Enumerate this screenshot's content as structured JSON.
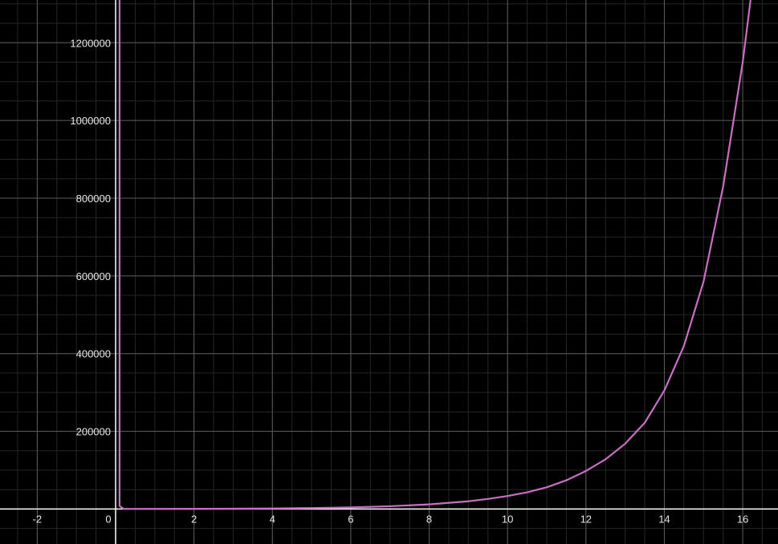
{
  "chart_data": {
    "type": "line",
    "title": "",
    "xlabel": "",
    "ylabel": "",
    "xlim": [
      -2.95,
      16.9
    ],
    "ylim": [
      -90000,
      1310000
    ],
    "grid": true,
    "x_ticks": [
      -2,
      0,
      2,
      4,
      6,
      8,
      10,
      12,
      14,
      16
    ],
    "x_tick_labels": [
      "-2",
      "0",
      "2",
      "4",
      "6",
      "8",
      "10",
      "12",
      "14",
      "16"
    ],
    "y_ticks": [
      200000,
      400000,
      600000,
      800000,
      1000000,
      1200000
    ],
    "y_tick_labels": [
      "200000",
      "400000",
      "600000",
      "800000",
      "1000000",
      "1200000"
    ],
    "line_color": "#c86fc3",
    "background_color": "#000000",
    "series": [
      {
        "points": [
          {
            "x": 0.1,
            "y": 1310000
          },
          {
            "x": 0.1,
            "y": 8000
          },
          {
            "x": 0.2,
            "y": 600
          },
          {
            "x": 1,
            "y": 300
          },
          {
            "x": 2,
            "y": 550
          },
          {
            "x": 3,
            "y": 900
          },
          {
            "x": 4,
            "y": 1500
          },
          {
            "x": 5,
            "y": 2500
          },
          {
            "x": 6,
            "y": 4200
          },
          {
            "x": 7,
            "y": 7200
          },
          {
            "x": 8,
            "y": 12000
          },
          {
            "x": 9,
            "y": 20000
          },
          {
            "x": 9.5,
            "y": 26000
          },
          {
            "x": 10,
            "y": 33500
          },
          {
            "x": 10.5,
            "y": 43000
          },
          {
            "x": 11,
            "y": 56000
          },
          {
            "x": 11.5,
            "y": 74000
          },
          {
            "x": 12,
            "y": 98000
          },
          {
            "x": 12.5,
            "y": 128000
          },
          {
            "x": 13,
            "y": 168000
          },
          {
            "x": 13.5,
            "y": 222000
          },
          {
            "x": 14,
            "y": 305000
          },
          {
            "x": 14.5,
            "y": 420000
          },
          {
            "x": 15,
            "y": 585000
          },
          {
            "x": 15.5,
            "y": 830000
          },
          {
            "x": 16,
            "y": 1150000
          },
          {
            "x": 16.2,
            "y": 1310000
          }
        ]
      }
    ]
  }
}
